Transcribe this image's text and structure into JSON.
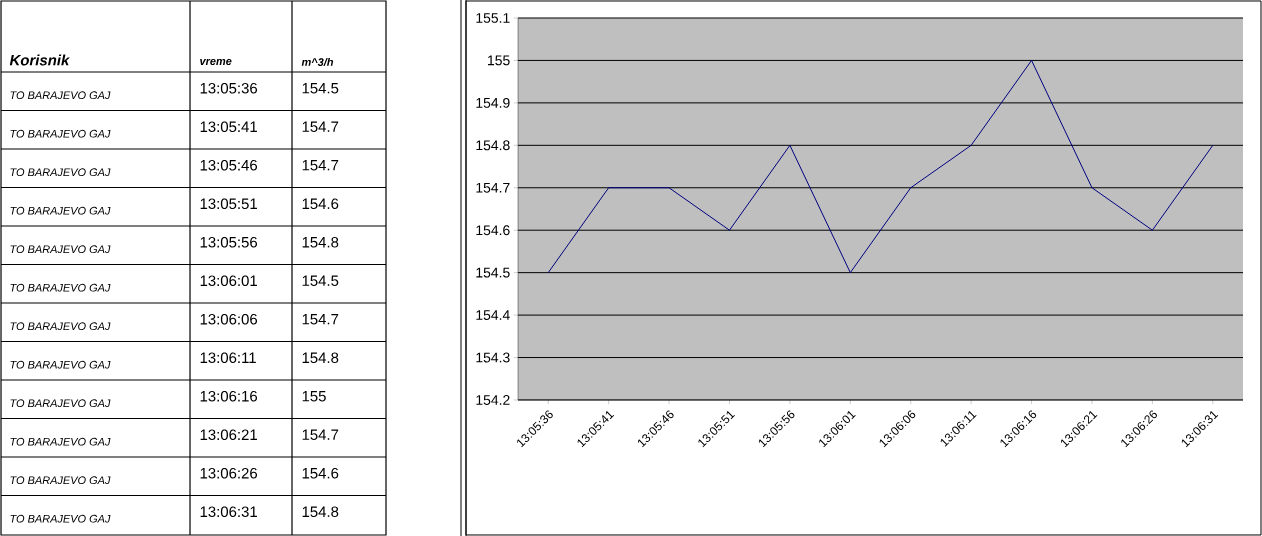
{
  "chart_data": {
    "type": "line",
    "categories": [
      "13:05:36",
      "13:05:41",
      "13:05:46",
      "13:05:51",
      "13:05:56",
      "13:06:01",
      "13:06:06",
      "13:06:11",
      "13:06:16",
      "13:06:21",
      "13:06:26",
      "13:06:31"
    ],
    "values": [
      154.5,
      154.7,
      154.7,
      154.6,
      154.8,
      154.5,
      154.7,
      154.8,
      155,
      154.7,
      154.6,
      154.8
    ],
    "color": "#000080",
    "ylim": [
      154.2,
      155.1
    ],
    "yticks": [
      154.2,
      154.3,
      154.4,
      154.5,
      154.6,
      154.7,
      154.8,
      154.9,
      155,
      155.1
    ],
    "grid": "y",
    "marker": "none",
    "line_style": "solid",
    "annotations": [
      "Korisnik",
      "vreme",
      "m^3/h",
      "TO BARAJEVO GAJ",
      "13:05:36",
      "154.5",
      "TO BARAJEVO GAJ",
      "13:05:41",
      "154.7",
      "TO BARAJEVO GAJ",
      "13:05:46",
      "154.7",
      "TO BARAJEVO GAJ",
      "13:05:51",
      "154.6",
      "TO BARAJEVO GAJ",
      "13:05:56",
      "154.8",
      "TO BARAJEVO GAJ",
      "13:06:01",
      "154.5",
      "TO BARAJEVO GAJ",
      "13:06:06",
      "154.7",
      "TO BARAJEVO GAJ",
      "13:06:11",
      "154.8",
      "TO BARAJEVO GAJ",
      "13:06:16",
      "155",
      "TO BARAJEVO GAJ",
      "13:06:21",
      "154.7",
      "TO BARAJEVO GAJ",
      "13:06:26",
      "154.6",
      "TO BARAJEVO GAJ",
      "13:06:31",
      "154.8"
    ]
  }
}
